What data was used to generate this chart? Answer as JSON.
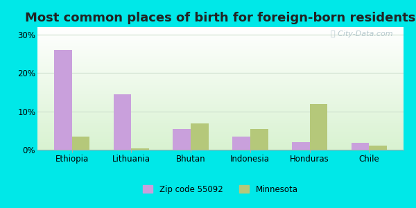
{
  "title": "Most common places of birth for foreign-born residents",
  "categories": [
    "Ethiopia",
    "Lithuania",
    "Bhutan",
    "Indonesia",
    "Honduras",
    "Chile"
  ],
  "zip_values": [
    26.0,
    14.5,
    5.5,
    3.5,
    2.0,
    1.8
  ],
  "mn_values": [
    3.5,
    0.4,
    6.8,
    5.5,
    12.0,
    1.0
  ],
  "zip_color": "#c9a0dc",
  "mn_color": "#b5c87a",
  "background_color": "#00e8e8",
  "title_fontsize": 13,
  "legend_zip_label": "Zip code 55092",
  "legend_mn_label": "Minnesota",
  "ylim": [
    0,
    32
  ],
  "yticks": [
    0,
    10,
    20,
    30
  ],
  "ytick_labels": [
    "0%",
    "10%",
    "20%",
    "30%"
  ]
}
